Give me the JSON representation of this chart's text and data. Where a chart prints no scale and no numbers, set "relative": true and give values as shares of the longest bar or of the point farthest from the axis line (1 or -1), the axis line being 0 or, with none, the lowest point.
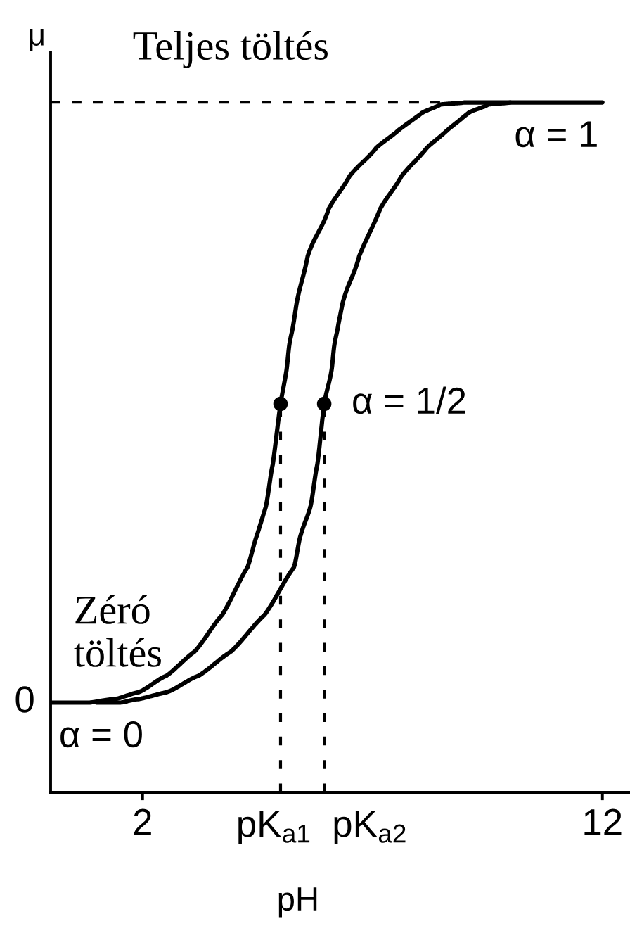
{
  "chart_data": {
    "type": "line",
    "relative": true,
    "xlabel": "pH",
    "ylabel": "μ",
    "xlim": [
      0,
      12.6
    ],
    "xticks": [
      2,
      12
    ],
    "series": [
      {
        "color": "#000000",
        "x": [
          0,
          0.78,
          1.39,
          1.91,
          2.52,
          3.13,
          3.73,
          4.28,
          4.49,
          4.68,
          4.83,
          5.0,
          5.13,
          5.19,
          5.28,
          5.35,
          5.59,
          6.05,
          6.5,
          7.08,
          7.57,
          8.08,
          8.48,
          9.0,
          12
        ],
        "values": [
          0.13,
          0.13,
          0.135,
          0.145,
          0.169,
          0.204,
          0.257,
          0.326,
          0.373,
          0.414,
          0.475,
          0.563,
          0.612,
          0.648,
          0.679,
          0.709,
          0.777,
          0.846,
          0.893,
          0.934,
          0.96,
          0.985,
          0.997,
          1,
          1
        ]
      },
      {
        "color": "#000000",
        "x": [
          1.0,
          1.48,
          1.91,
          2.52,
          3.22,
          3.92,
          4.65,
          5.29,
          5.44,
          5.65,
          5.8,
          5.95,
          6.11,
          6.17,
          6.26,
          6.35,
          6.71,
          7.17,
          7.63,
          8.18,
          8.63,
          9.09,
          9.52,
          10.0
        ],
        "values": [
          0.13,
          0.13,
          0.135,
          0.145,
          0.169,
          0.204,
          0.257,
          0.326,
          0.373,
          0.414,
          0.475,
          0.563,
          0.612,
          0.648,
          0.679,
          0.709,
          0.777,
          0.846,
          0.893,
          0.934,
          0.96,
          0.985,
          0.997,
          1
        ]
      },
      {
        "type": "scatter",
        "marker": "circle",
        "color": "#000000",
        "x": [
          5.0,
          5.95
        ],
        "values": [
          0.563,
          0.563
        ]
      }
    ],
    "ref_lines": [
      {
        "axis": "y",
        "value": 1,
        "label": "Teljes töltés",
        "color": "#000000",
        "line_style": "dashed"
      },
      {
        "axis": "x",
        "value": 5.0,
        "label": "pK$_{a1}$",
        "color": "#000000",
        "line_style": "dotted"
      },
      {
        "axis": "x",
        "value": 5.95,
        "label": "pK$_{a2}$",
        "color": "#000000",
        "line_style": "dotted"
      }
    ],
    "annotations": [
      {
        "text": "α = 1",
        "x": 11.0,
        "y": 1
      },
      {
        "text": "α = 1/2",
        "x": 5.95,
        "y": 0.563
      },
      {
        "text": "α = 0",
        "x": 1.1,
        "y": 0.13
      },
      {
        "text": "Zéró\ntöltés",
        "x": 0.5,
        "y": 0.13
      },
      {
        "text": "0",
        "x": 0,
        "y": 0.13
      }
    ]
  }
}
